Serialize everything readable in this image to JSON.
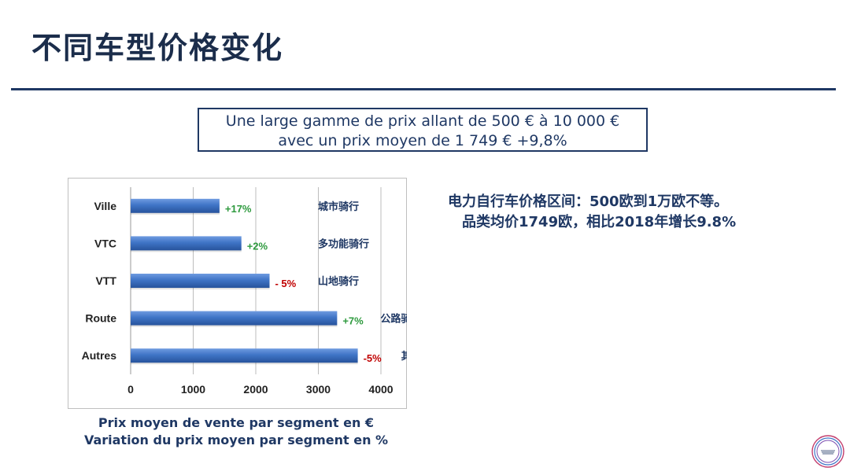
{
  "slide": {
    "title": "不同车型价格变化",
    "summary_line1": "Une large gamme de prix allant de 500 € à 10 000 €",
    "summary_line2": "avec un prix moyen de 1 749 € +9,8%",
    "note_line1": "电力自行车价格区间：500欧到1万欧不等。",
    "note_line2": "品类均价1749欧，相比2018年增长9.8%",
    "caption_line1": "Prix moyen de vente par segment en €",
    "caption_line2": "Variation du prix moyen par segment en %",
    "logo_text": "Union Sport & Cycle"
  },
  "chart_data": {
    "type": "bar",
    "orientation": "horizontal",
    "categories": [
      "Ville",
      "VTC",
      "VTT",
      "Route",
      "Autres"
    ],
    "values": [
      1420,
      1770,
      2220,
      3300,
      3630
    ],
    "variations": [
      "+17%",
      "+2%",
      "- 5%",
      "+7%",
      "-5%"
    ],
    "variation_colors": [
      "#2e9a3e",
      "#2e9a3e",
      "#c00000",
      "#2e9a3e",
      "#c00000"
    ],
    "segment_labels_cn": [
      "城市骑行",
      "多功能骑行",
      "山地骑行",
      "公路骑行",
      "其他"
    ],
    "xlim": [
      0,
      4000
    ],
    "xticks": [
      "0",
      "1000",
      "2000",
      "3000",
      "4000"
    ],
    "grid": true,
    "bar_color": "#3f74c6",
    "xlabel": "",
    "ylabel": ""
  }
}
